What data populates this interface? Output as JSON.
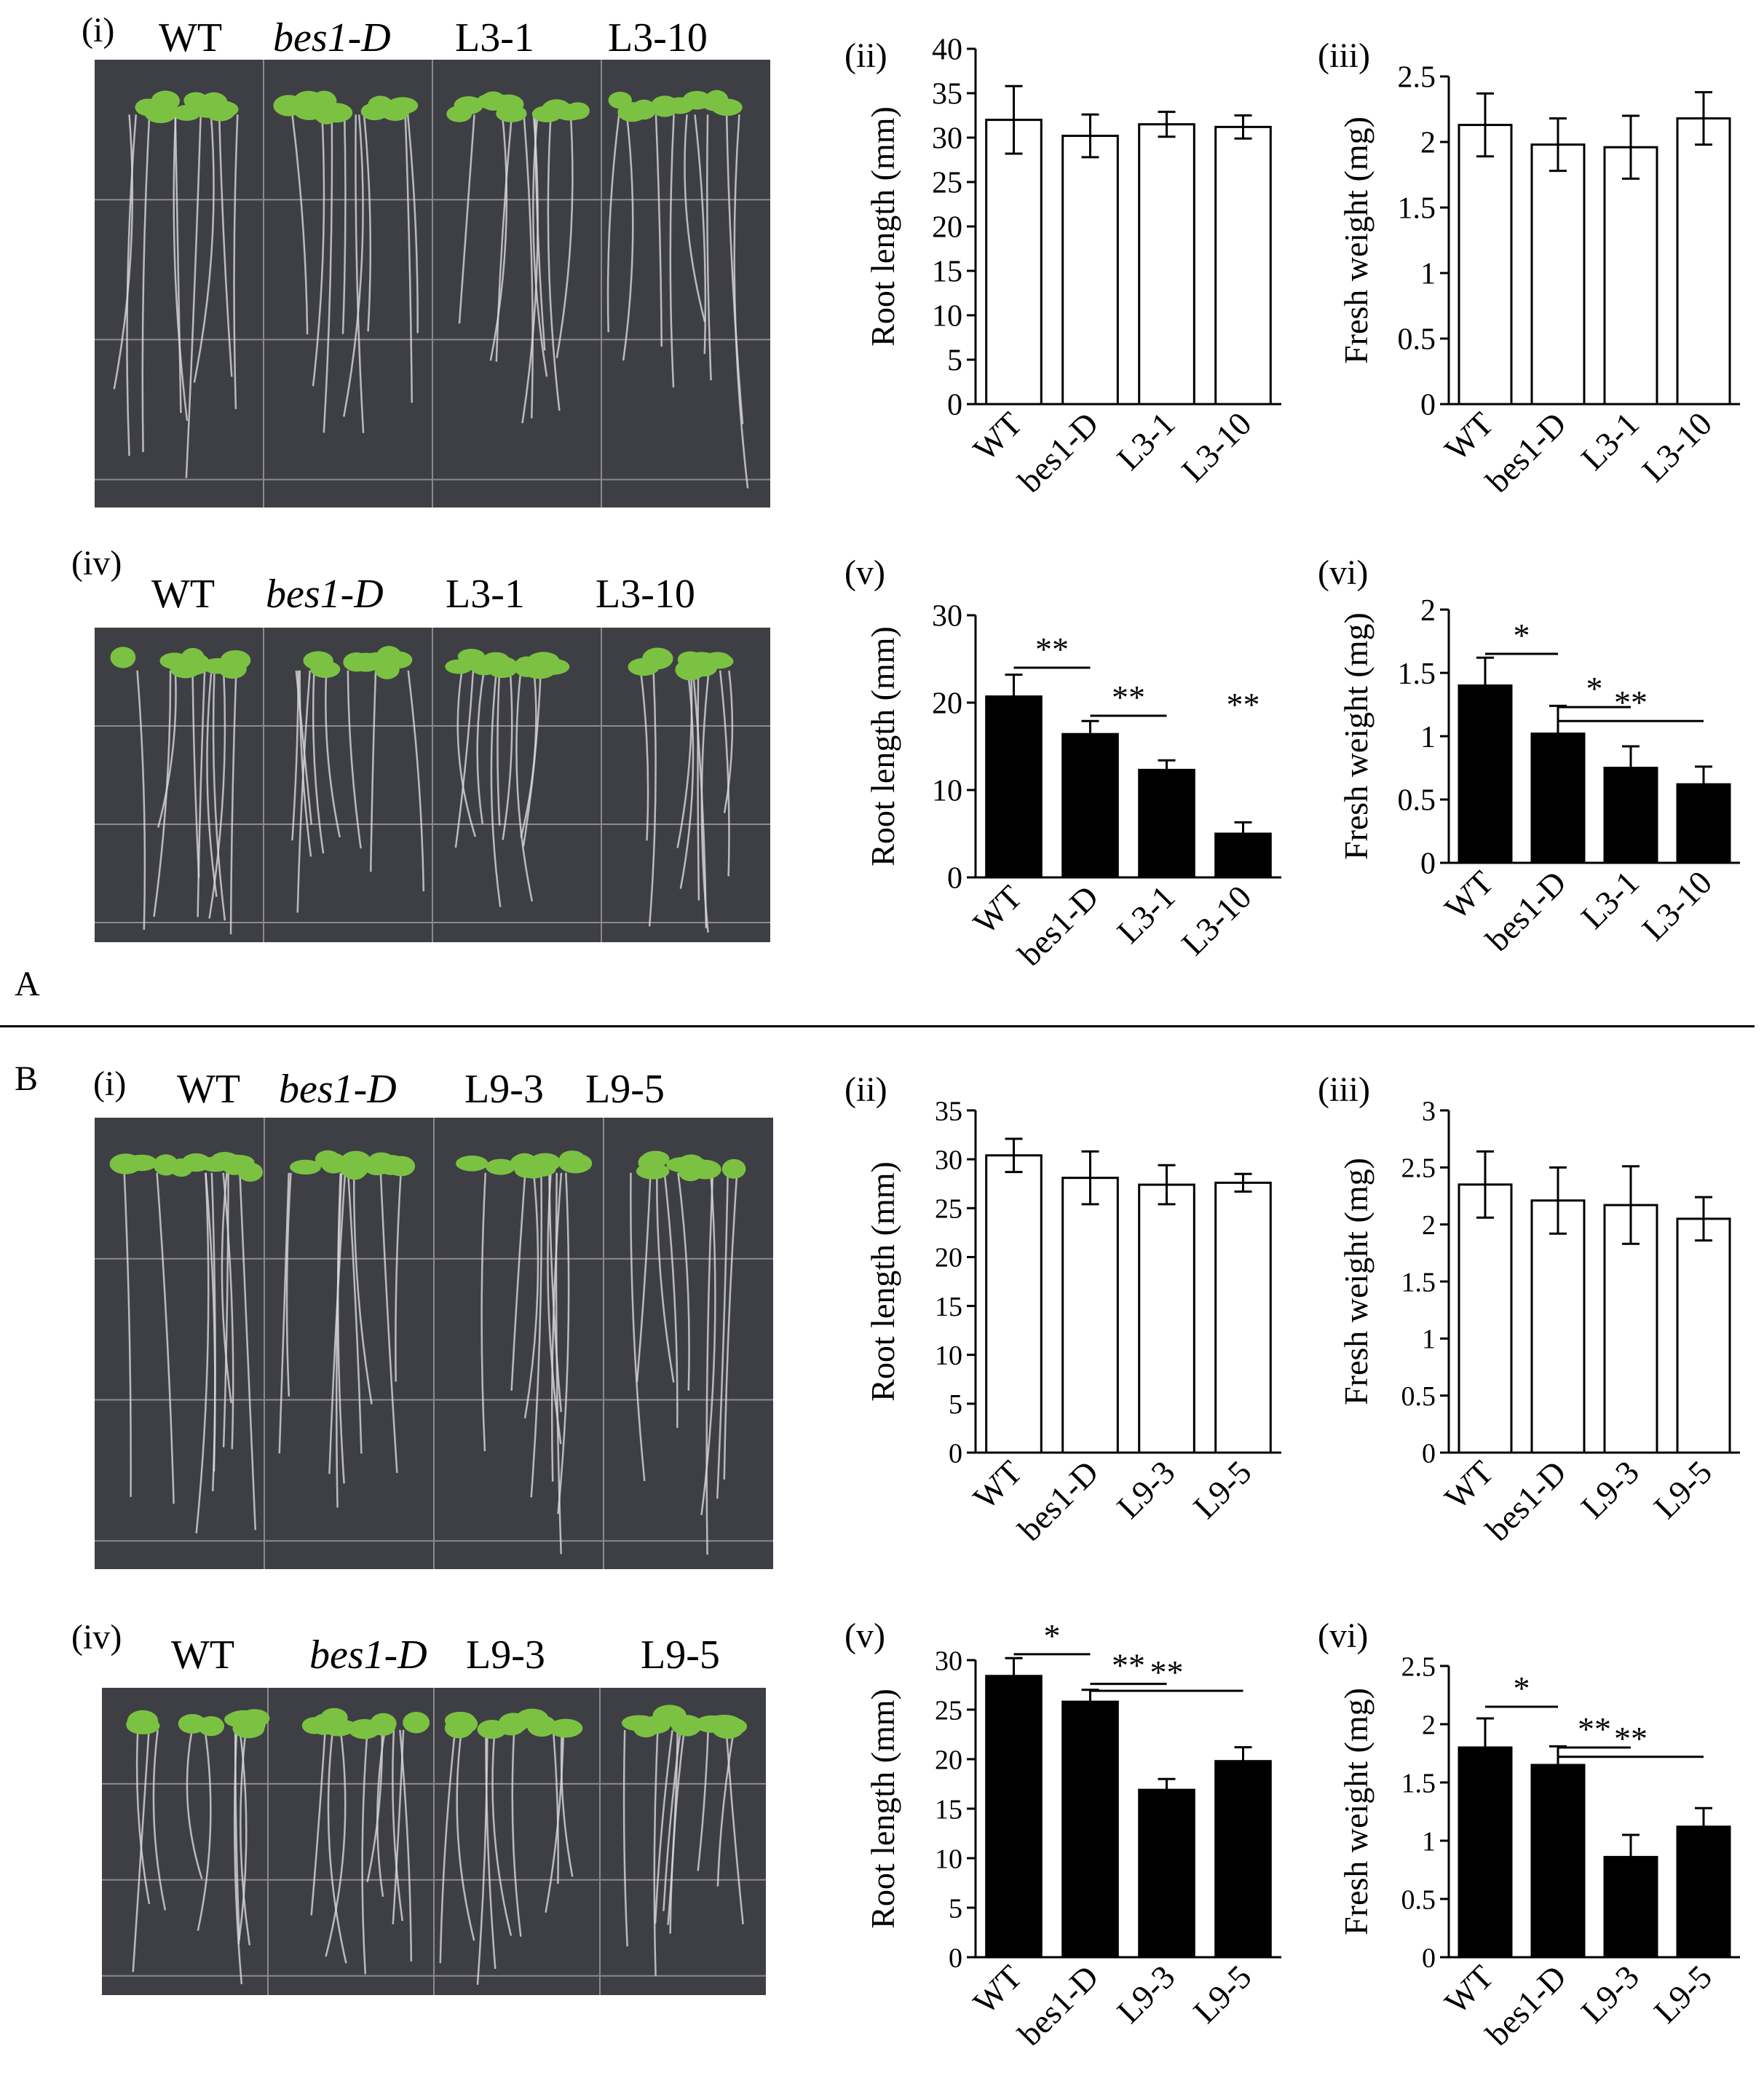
{
  "panel_letters": {
    "A": "A",
    "B": "B"
  },
  "panels": {
    "A_i": {
      "tag": "(i)",
      "labels": [
        "WT",
        "bes1-D",
        "L3-1",
        "L3-10"
      ],
      "italic": [
        false,
        true,
        false,
        false
      ]
    },
    "A_iv": {
      "tag": "(iv)",
      "labels": [
        "WT",
        "bes1-D",
        "L3-1",
        "L3-10"
      ],
      "italic": [
        false,
        true,
        false,
        false
      ]
    },
    "B_i": {
      "tag": "(i)",
      "labels": [
        "WT",
        "bes1-D",
        "L9-3",
        "L9-5"
      ],
      "italic": [
        false,
        true,
        false,
        false
      ]
    },
    "B_iv": {
      "tag": "(iv)",
      "labels": [
        "WT",
        "bes1-D",
        "L9-3",
        "L9-5"
      ],
      "italic": [
        false,
        true,
        false,
        false
      ]
    }
  },
  "colors": {
    "photo_bg": "#3e3f45",
    "leaf": "#7cc242",
    "root": "#d9d9d9",
    "grid": "#8a8a8e"
  },
  "chart_data": [
    {
      "id": "A_ii",
      "tag": "(ii)",
      "type": "bar",
      "categories": [
        "WT",
        "bes1-D",
        "L3-1",
        "L3-10"
      ],
      "values": [
        32,
        30.2,
        31.5,
        31.2
      ],
      "errors": [
        3.8,
        2.4,
        1.4,
        1.3
      ],
      "ylabel": "Root  length (mm)",
      "ylim": [
        0,
        40
      ],
      "yticks": [
        0,
        5,
        10,
        15,
        20,
        25,
        30,
        35,
        40
      ],
      "fill": "#ffffff",
      "significance": []
    },
    {
      "id": "A_iii",
      "tag": "(iii)",
      "type": "bar",
      "categories": [
        "WT",
        "bes1-D",
        "L3-1",
        "L3-10"
      ],
      "values": [
        2.13,
        1.98,
        1.96,
        2.18
      ],
      "errors": [
        0.24,
        0.2,
        0.24,
        0.2
      ],
      "ylabel": "Fresh weight (mg)",
      "ylim": [
        0,
        2.5
      ],
      "yticks": [
        0,
        0.5,
        1,
        1.5,
        2,
        2.5
      ],
      "fill": "#ffffff",
      "significance": []
    },
    {
      "id": "A_v",
      "tag": "(v)",
      "type": "bar",
      "categories": [
        "WT",
        "bes1-D",
        "L3-1",
        "L3-10"
      ],
      "values": [
        20.7,
        16.4,
        12.3,
        5
      ],
      "errors": [
        2.5,
        1.5,
        1.1,
        1.3
      ],
      "ylabel": "Root  length (mm)",
      "ylim": [
        0,
        35
      ],
      "yticks": [
        0,
        10,
        20,
        30
      ],
      "fill": "#000000",
      "significance": [
        {
          "from": 0,
          "to": 1,
          "y": 24,
          "label": "**"
        },
        {
          "from": 1,
          "to": 2,
          "y": 18.5,
          "label": "**"
        },
        {
          "at": 3,
          "y": 18.5,
          "label": "**"
        }
      ]
    },
    {
      "id": "A_vi",
      "tag": "(vi)",
      "type": "bar",
      "categories": [
        "WT",
        "bes1-D",
        "L3-1",
        "L3-10"
      ],
      "values": [
        1.4,
        1.02,
        0.75,
        0.62
      ],
      "errors": [
        0.22,
        0.22,
        0.17,
        0.14
      ],
      "ylabel": "Fresh weight (mg)",
      "ylim": [
        0,
        2.3
      ],
      "yticks": [
        0,
        0.5,
        1,
        1.5,
        2
      ],
      "fill": "#000000",
      "significance": [
        {
          "from": 0,
          "to": 1,
          "y": 1.65,
          "label": "*"
        },
        {
          "from": 1,
          "to": 2,
          "y": 1.23,
          "label": "*"
        },
        {
          "from": 1,
          "to": 3,
          "y": 1.12,
          "label": "**"
        }
      ]
    },
    {
      "id": "B_ii",
      "tag": "(ii)",
      "type": "bar",
      "categories": [
        "WT",
        "bes1-D",
        "L9-3",
        "L9-5"
      ],
      "values": [
        30.4,
        28.1,
        27.4,
        27.6
      ],
      "errors": [
        1.7,
        2.7,
        2.0,
        0.9
      ],
      "ylabel": "Root length (mm)",
      "ylim": [
        0,
        35
      ],
      "yticks": [
        0,
        5,
        10,
        15,
        20,
        25,
        30,
        35
      ],
      "fill": "#ffffff",
      "significance": []
    },
    {
      "id": "B_iii",
      "tag": "(iii)",
      "type": "bar",
      "categories": [
        "WT",
        "bes1-D",
        "L9-3",
        "L9-5"
      ],
      "values": [
        2.35,
        2.21,
        2.17,
        2.05
      ],
      "errors": [
        0.29,
        0.29,
        0.34,
        0.19
      ],
      "ylabel": "Fresh weight (mg)",
      "ylim": [
        0,
        3
      ],
      "yticks": [
        0,
        0.5,
        1,
        1.5,
        2,
        2.5,
        3
      ],
      "fill": "#ffffff",
      "significance": []
    },
    {
      "id": "B_v",
      "tag": "(v)",
      "type": "bar",
      "categories": [
        "WT",
        "bes1-D",
        "L9-3",
        "L9-5"
      ],
      "values": [
        28.4,
        25.8,
        16.9,
        19.8
      ],
      "errors": [
        1.8,
        1.2,
        1.1,
        1.4
      ],
      "ylabel": "Root length (mm)",
      "ylim": [
        0,
        30
      ],
      "yticks": [
        0,
        5,
        10,
        15,
        20,
        25,
        30
      ],
      "fill": "#000000",
      "significance": [
        {
          "from": 0,
          "to": 1,
          "y": 30.6,
          "label": "*"
        },
        {
          "from": 1,
          "to": 2,
          "y": 27.6,
          "label": "**"
        },
        {
          "from": 1,
          "to": 3,
          "y": 26.9,
          "label": "**"
        }
      ]
    },
    {
      "id": "B_vi",
      "tag": "(vi)",
      "type": "bar",
      "categories": [
        "WT",
        "bes1-D",
        "L9-3",
        "L9-5"
      ],
      "values": [
        1.8,
        1.65,
        0.86,
        1.12
      ],
      "errors": [
        0.25,
        0.16,
        0.19,
        0.16
      ],
      "ylabel": "Fresh weight (mg)",
      "ylim": [
        0,
        3
      ],
      "yticks": [
        0,
        0.5,
        1,
        1.5,
        2,
        2.5
      ],
      "fill": "#000000",
      "significance": [
        {
          "from": 0,
          "to": 1,
          "y": 2.15,
          "label": "*"
        },
        {
          "from": 1,
          "to": 2,
          "y": 1.8,
          "label": "**"
        },
        {
          "from": 1,
          "to": 3,
          "y": 1.72,
          "label": "**"
        }
      ]
    }
  ]
}
